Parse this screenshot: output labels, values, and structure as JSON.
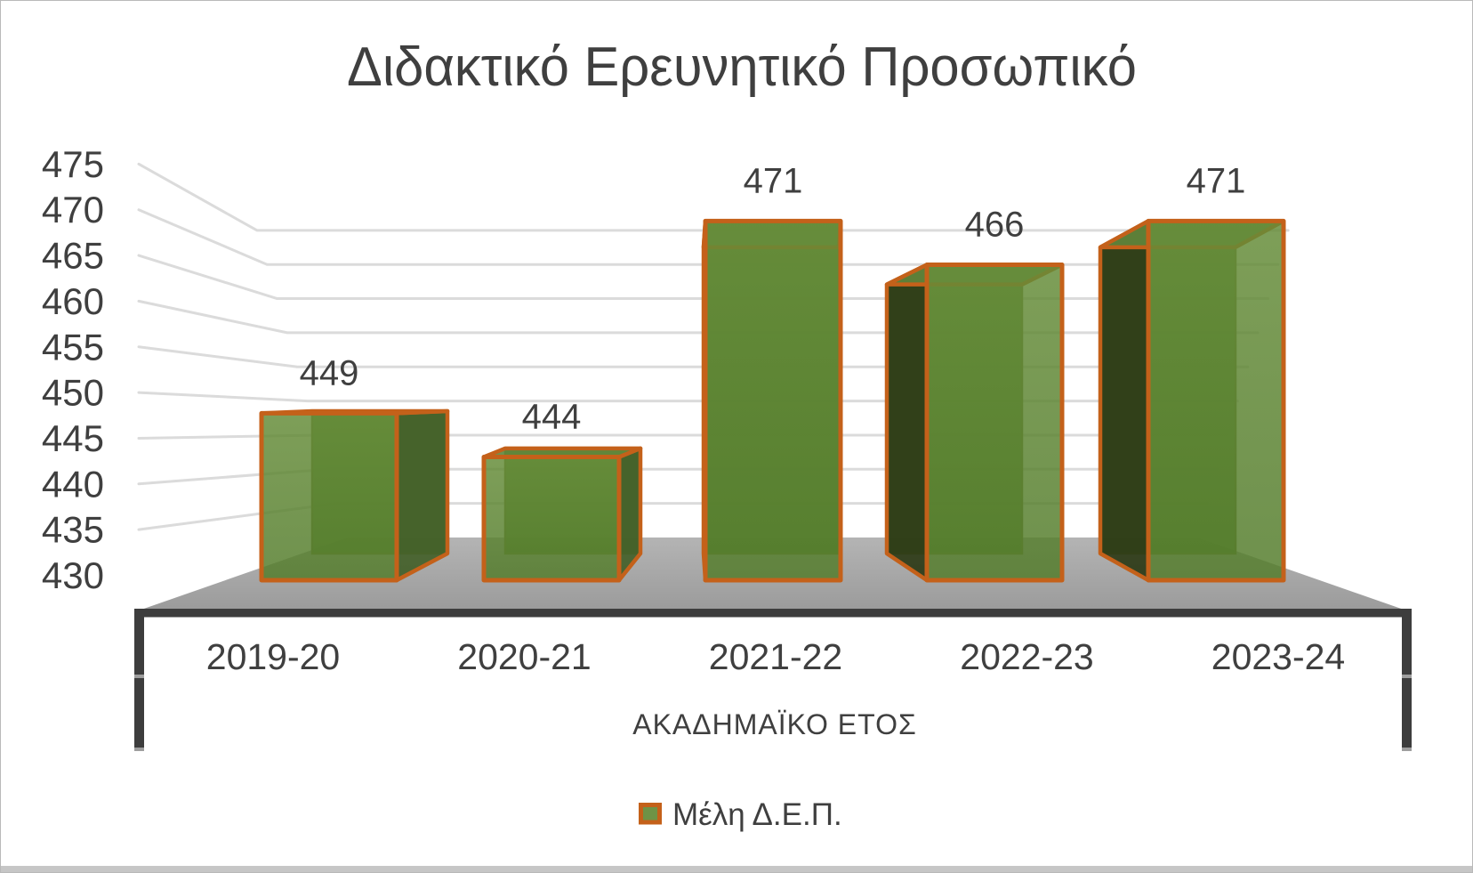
{
  "chart_data": {
    "type": "bar",
    "projection": "3d-perspective",
    "title": "Διδακτικό Ερευνητικό Προσωπικό",
    "categories": [
      "2019-20",
      "2020-21",
      "2021-22",
      "2022-23",
      "2023-24"
    ],
    "series": [
      {
        "name": "Μέλη Δ.Ε.Π.",
        "values": [
          449,
          444,
          471,
          466,
          471
        ],
        "data_labels": [
          "449",
          "444",
          "471",
          "466",
          "471"
        ]
      }
    ],
    "xlabel": "ΑΚΑΔΗΜΑΪΚΟ ΕΤΟΣ",
    "ylabel": "",
    "ylim": [
      430,
      475
    ],
    "yticks": [
      430,
      435,
      440,
      445,
      450,
      455,
      460,
      465,
      470,
      475
    ],
    "grid": true,
    "legend_position": "bottom"
  },
  "colors": {
    "bar_front_top": "#658c38",
    "bar_front_bottom": "#537c2b",
    "bar_border": "#c4611a",
    "bar_side_right": "#435f29",
    "bar_side_left": "#2c3a16",
    "bar_top": "#60853a",
    "bar_back": "#567e2e",
    "bar_back_edge": "#6e7c3a",
    "gridline": "#dbdbdb",
    "floor_back": "#b4b4b4",
    "floor_front": "#9b9b9b",
    "axis_frame": "#3d3d3d",
    "axis_tick": "#9e9e9e",
    "text": "#3f3f3f"
  }
}
